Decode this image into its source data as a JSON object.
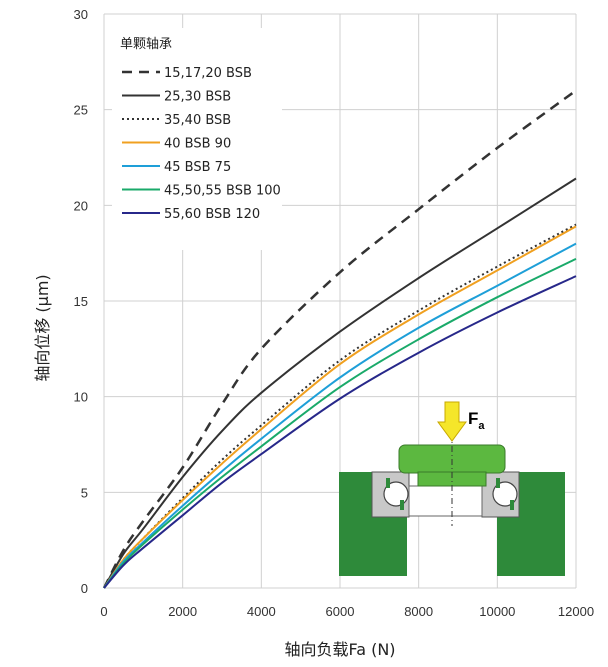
{
  "chart_data": {
    "type": "line",
    "xlabel": "轴向负载Fa (N)",
    "ylabel": "轴向位移 (µm)",
    "xlim": [
      0,
      12000
    ],
    "ylim": [
      0,
      30
    ],
    "xticks": [
      "0",
      "2000",
      "4000",
      "6000",
      "8000",
      "10000",
      "12000"
    ],
    "yticks": [
      "0",
      "5",
      "10",
      "15",
      "20",
      "25",
      "30"
    ],
    "grid": true,
    "legend_title": "单颗轴承",
    "legend_position": "top-left",
    "series": [
      {
        "name": "15,17,20 BSB",
        "color": "#333333",
        "style": "dash",
        "x": [
          0,
          500,
          1000,
          2000,
          3000,
          4000,
          6000,
          8000,
          10000,
          12000
        ],
        "y": [
          0,
          2.0,
          3.5,
          6.3,
          9.6,
          12.5,
          16.5,
          19.8,
          23.0,
          26.0
        ]
      },
      {
        "name": "25,30 BSB",
        "color": "#333333",
        "style": "solid",
        "x": [
          0,
          500,
          1000,
          2000,
          3000,
          4000,
          6000,
          8000,
          10000,
          12000
        ],
        "y": [
          0,
          1.8,
          3.1,
          5.8,
          8.2,
          10.2,
          13.4,
          16.2,
          18.8,
          21.4
        ]
      },
      {
        "name": "35,40 BSB",
        "color": "#333333",
        "style": "dot",
        "x": [
          0,
          500,
          1000,
          2000,
          3000,
          4000,
          6000,
          8000,
          10000,
          12000
        ],
        "y": [
          0,
          1.5,
          2.6,
          4.7,
          6.7,
          8.5,
          11.9,
          14.5,
          16.8,
          19.0
        ]
      },
      {
        "name": "40 BSB 90",
        "color": "#f0a020",
        "style": "solid",
        "x": [
          0,
          500,
          1000,
          2000,
          3000,
          4000,
          6000,
          8000,
          10000,
          12000
        ],
        "y": [
          0,
          1.5,
          2.6,
          4.6,
          6.5,
          8.3,
          11.7,
          14.3,
          16.6,
          18.9
        ]
      },
      {
        "name": "45 BSB 75",
        "color": "#1e9fd8",
        "style": "solid",
        "x": [
          0,
          500,
          1000,
          2000,
          3000,
          4000,
          6000,
          8000,
          10000,
          12000
        ],
        "y": [
          0,
          1.4,
          2.4,
          4.3,
          6.1,
          7.8,
          11.0,
          13.6,
          15.8,
          18.0
        ]
      },
      {
        "name": "45,50,55 BSB 100",
        "color": "#1aaa6a",
        "style": "solid",
        "x": [
          0,
          500,
          1000,
          2000,
          3000,
          4000,
          6000,
          8000,
          10000,
          12000
        ],
        "y": [
          0,
          1.3,
          2.3,
          4.1,
          5.8,
          7.4,
          10.5,
          13.0,
          15.2,
          17.2
        ]
      },
      {
        "name": "55,60 BSB 120",
        "color": "#27288a",
        "style": "solid",
        "x": [
          0,
          500,
          1000,
          2000,
          3000,
          4000,
          6000,
          8000,
          10000,
          12000
        ],
        "y": [
          0,
          1.2,
          2.1,
          3.8,
          5.5,
          7.0,
          9.9,
          12.3,
          14.4,
          16.3
        ]
      }
    ],
    "annotation": {
      "load_label": "F",
      "load_subscript": "a"
    }
  },
  "colors": {
    "housing": "#2e8a3a",
    "inner_part": "#5cb840",
    "load_arrow": "#f5e62a",
    "grid": "#d0d0d0"
  }
}
